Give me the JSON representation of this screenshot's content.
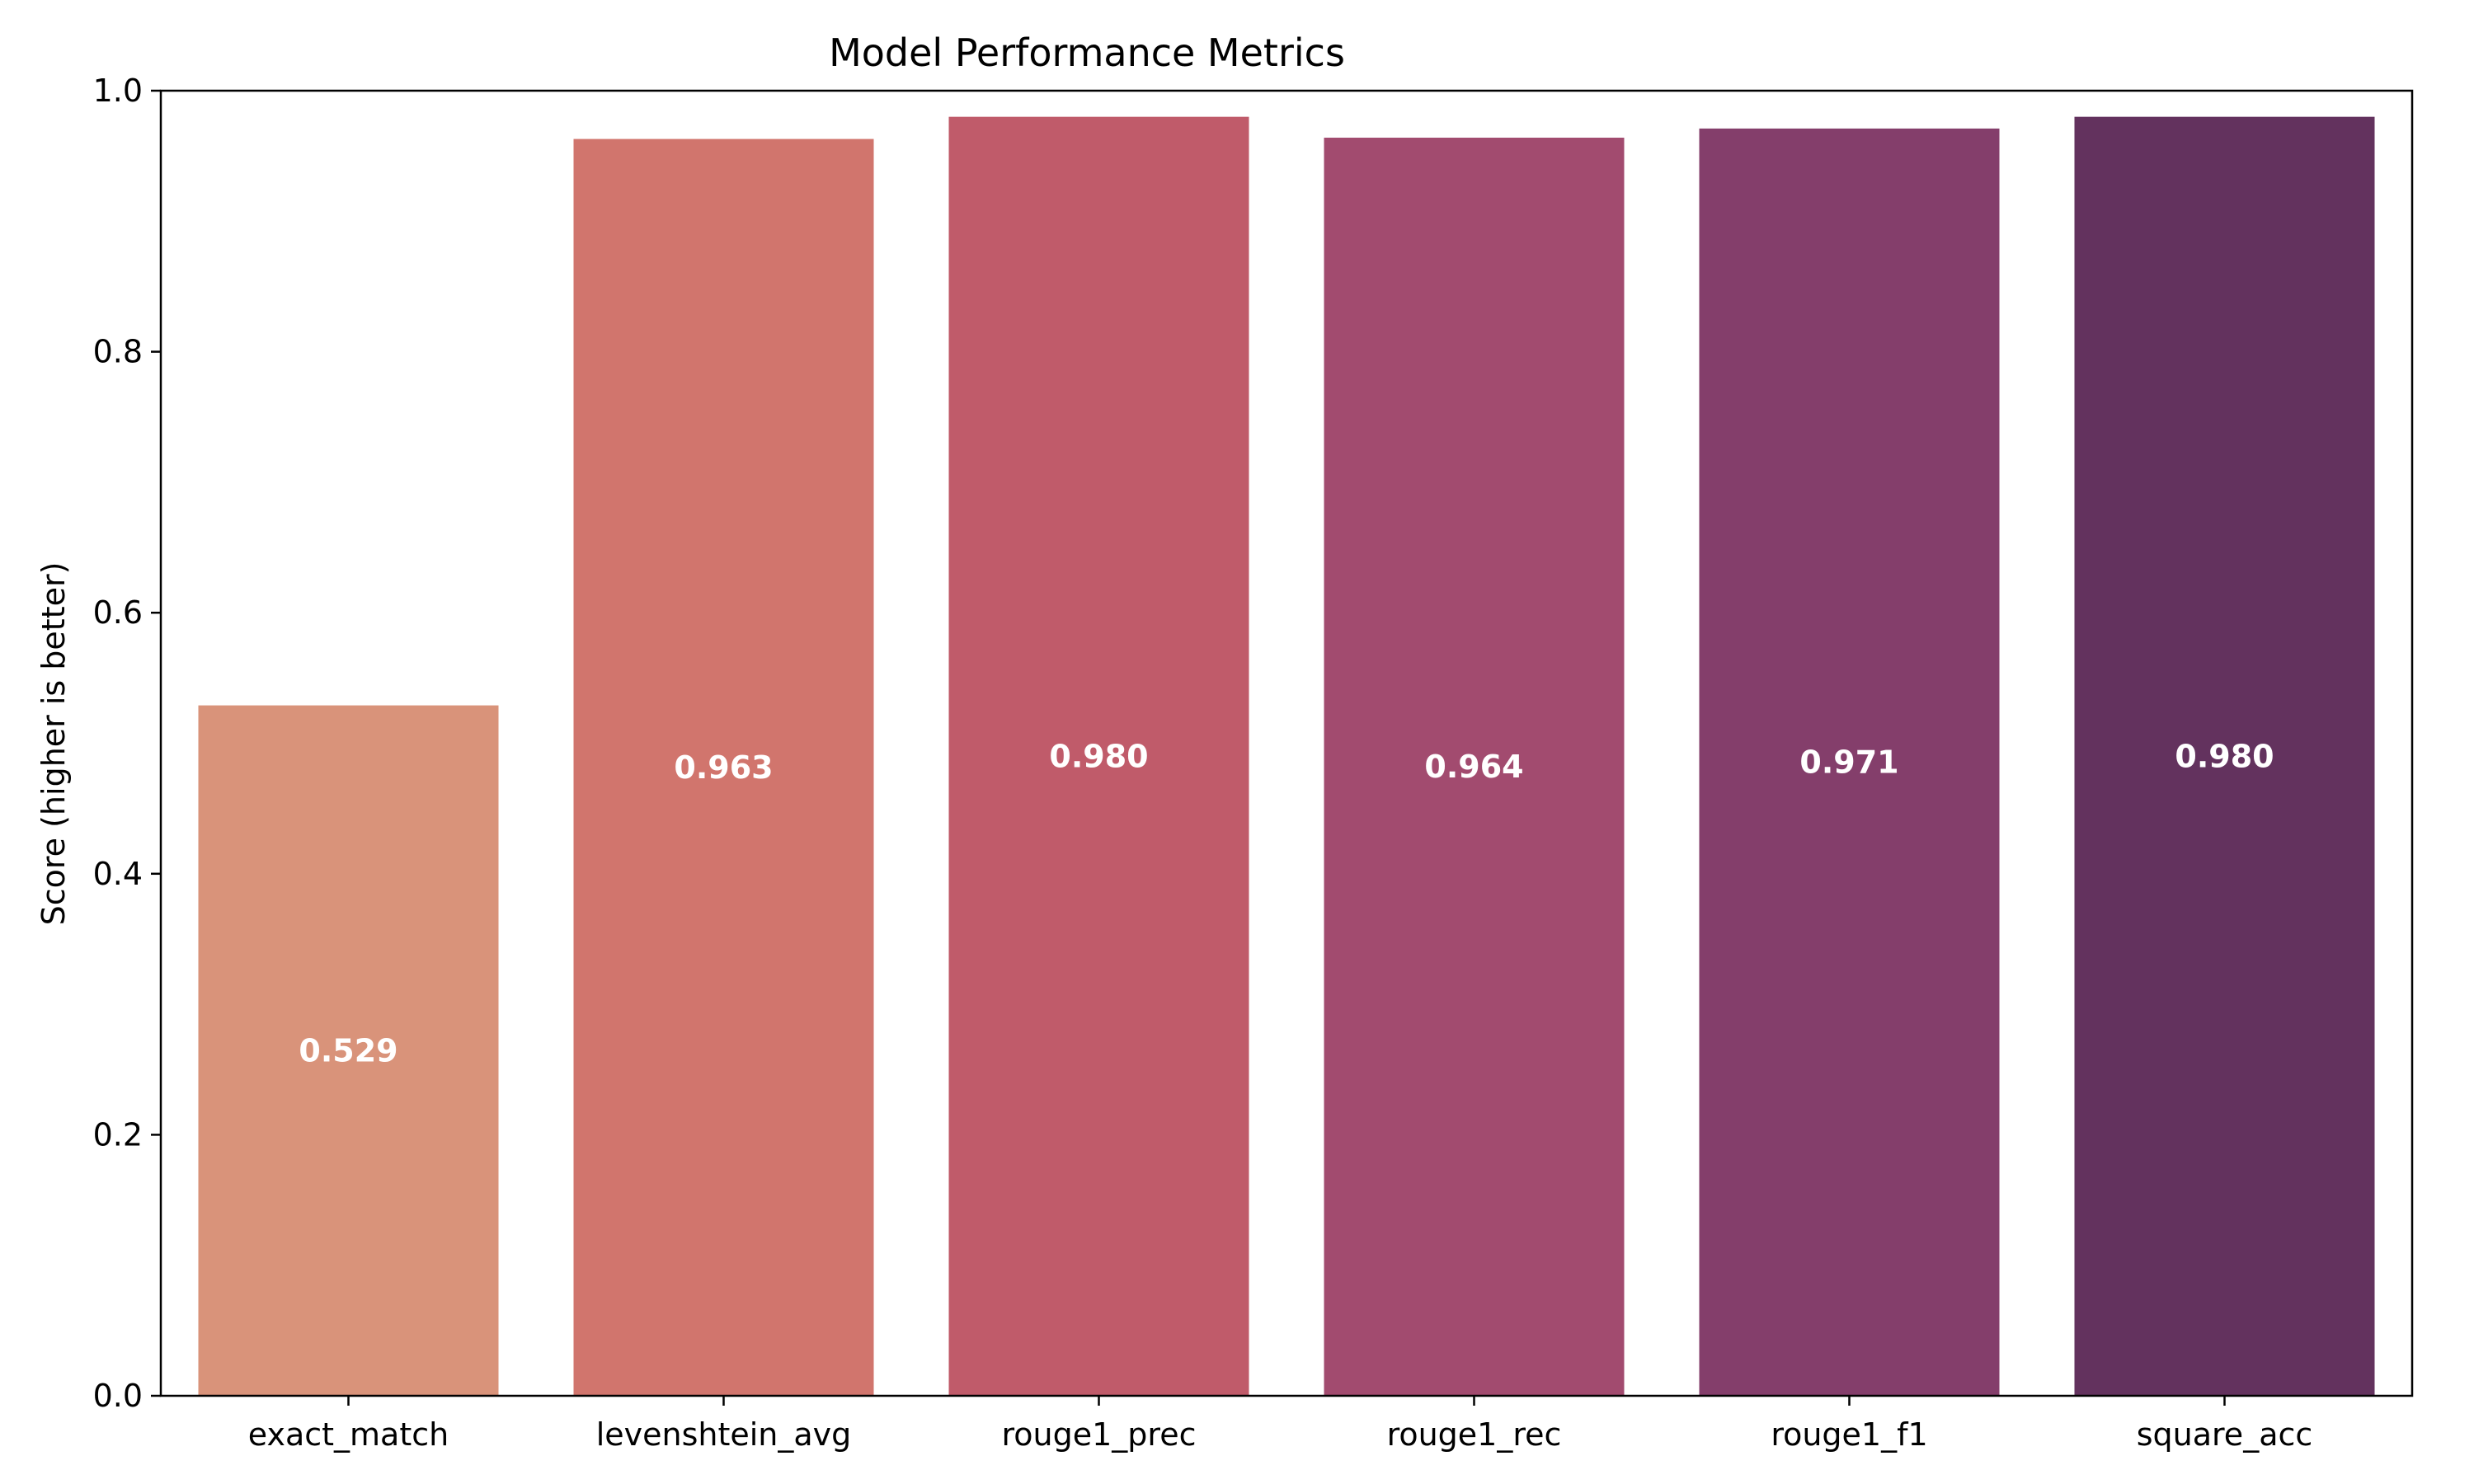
{
  "chart_data": {
    "type": "bar",
    "title": "Model Performance Metrics",
    "xlabel": "",
    "ylabel": "Score (higher is better)",
    "ylim": [
      0,
      1.0
    ],
    "yticks": [
      0.0,
      0.2,
      0.4,
      0.6,
      0.8,
      1.0
    ],
    "grid": false,
    "categories": [
      "exact_match",
      "levenshtein_avg",
      "rouge1_prec",
      "rouge1_rec",
      "rouge1_f1",
      "square_acc"
    ],
    "values": [
      0.529,
      0.963,
      0.98,
      0.964,
      0.971,
      0.98
    ],
    "value_labels": [
      "0.529",
      "0.963",
      "0.980",
      "0.964",
      "0.971",
      "0.980"
    ],
    "colors": [
      "#d9937a",
      "#d1756d",
      "#c05b6a",
      "#a24b6f",
      "#843e6b",
      "#63325e"
    ]
  }
}
